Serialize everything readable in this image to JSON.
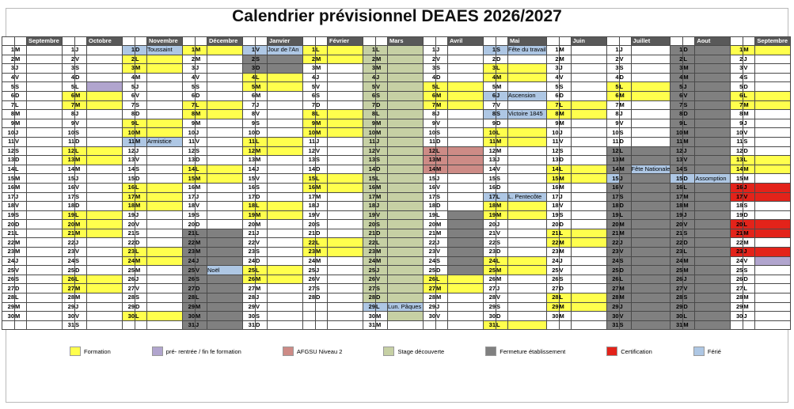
{
  "title": "Calendrier prévisionnel DEAES 2026/2027",
  "colors": {
    "formation": "#FFFF4D",
    "prerentree": "#B1A5CE",
    "afgsu": "#CD8B86",
    "stage": "#C6D0A4",
    "fermeture": "#808080",
    "certification": "#E3231A",
    "ferie": "#AEC7E4",
    "month_header_bg": "#595959",
    "month_header_text": "#FFFFFF",
    "grid": "#4A4A4A"
  },
  "legend": [
    {
      "label": "Formation",
      "key": "formation"
    },
    {
      "label": "pré- rentrée / fin fe formation",
      "key": "prerentree"
    },
    {
      "label": "AFGSU Niveau 2",
      "key": "afgsu"
    },
    {
      "label": "Stage découverte",
      "key": "stage"
    },
    {
      "label": "Fermeture établissement",
      "key": "fermeture"
    },
    {
      "label": "Certification",
      "key": "certification"
    },
    {
      "label": "Férié",
      "key": "ferie"
    }
  ],
  "fill_codes_doc": "y=formation p=pré-rentrée(annot) a=AFGSU g=stage ga=stage(annot) x=fermeture xa=fermeture(annot) r=certification f=férié xf=fermeture+férié-annot fx=férié-num+fermeture",
  "months": [
    {
      "name": "Septembre",
      "days": [
        "1|M",
        "2|M",
        "3|J",
        "4|V",
        "5|S",
        "6|D",
        "7|L",
        "8|M",
        "9|M",
        "10|J",
        "11|V",
        "12|S",
        "13|D",
        "14|L",
        "15|M",
        "16|M",
        "17|J",
        "18|V",
        "19|S",
        "20|D",
        "21|L",
        "22|M",
        "23|M",
        "24|J",
        "25|V",
        "26|S",
        "27|D",
        "28|L",
        "29|M",
        "30|M"
      ]
    },
    {
      "name": "Octobre",
      "days": [
        "1|J",
        "2|V",
        "3|S",
        "4|D",
        "5|L|p",
        "6|M|y",
        "7|M|y",
        "8|J",
        "9|V",
        "10|S",
        "11|D",
        "12|L|y",
        "13|M|y",
        "14|M",
        "15|J",
        "16|V",
        "17|S",
        "18|D",
        "19|L|y",
        "20|M|y",
        "21|M|y",
        "22|J",
        "23|V",
        "24|S",
        "25|D",
        "26|L|y",
        "27|M|y",
        "28|M",
        "29|J",
        "30|V",
        "31|S"
      ]
    },
    {
      "name": "Novembre",
      "days": [
        "1|D|f|Toussaint",
        "2|L|y",
        "3|M|y",
        "4|M",
        "5|J",
        "6|V",
        "7|S",
        "8|D",
        "9|L|y",
        "10|M|y",
        "11|M|f|Armistice",
        "12|J",
        "13|V",
        "14|S",
        "15|D",
        "16|L|y",
        "17|M|y",
        "18|M|y",
        "19|J",
        "20|V",
        "21|S",
        "22|D",
        "23|L|y",
        "24|M|y",
        "25|M",
        "26|J",
        "27|V",
        "28|S",
        "29|D",
        "30|L|y"
      ]
    },
    {
      "name": "Décembre",
      "days": [
        "1|M|y",
        "2|M",
        "3|J",
        "4|V",
        "5|S",
        "6|D",
        "7|L|y",
        "8|M|y",
        "9|M",
        "10|J",
        "11|V",
        "12|S",
        "13|D",
        "14|L|y",
        "15|M|y",
        "16|M",
        "17|J",
        "18|V",
        "19|S",
        "20|D",
        "21|L|x",
        "22|M|x",
        "23|M|x",
        "24|J|x",
        "25|V|xf|Noël",
        "26|S|x",
        "27|D|x",
        "28|L|x",
        "29|M|x",
        "30|M|x",
        "31|J|x"
      ]
    },
    {
      "name": "Janvier",
      "days": [
        "1|V|f|Jour de l'An",
        "2|S|x",
        "3|D|x",
        "4|L|y",
        "5|M|y",
        "6|M",
        "7|J",
        "8|V",
        "9|S",
        "10|D",
        "11|L|y",
        "12|M|y",
        "13|M",
        "14|J",
        "15|V",
        "16|S",
        "17|D",
        "18|L|y",
        "19|M|y",
        "20|M",
        "21|J",
        "22|V",
        "23|S",
        "24|D",
        "25|L|y",
        "26|M|y",
        "27|M",
        "28|J",
        "29|V",
        "30|S",
        "31|D"
      ]
    },
    {
      "name": "Février",
      "days": [
        "1|L|y",
        "2|M|y",
        "3|M",
        "4|J",
        "5|V",
        "6|S",
        "7|D",
        "8|L|y",
        "9|M|y",
        "10|M|y",
        "11|J",
        "12|V",
        "13|S",
        "14|D",
        "15|L|y",
        "16|M|y",
        "17|M",
        "18|J",
        "19|V",
        "20|S",
        "21|D",
        "22|L|y",
        "23|M|y",
        "24|M",
        "25|J",
        "26|V",
        "27|S",
        "28|D"
      ]
    },
    {
      "name": "Mars",
      "days": [
        "1|L|g",
        "2|M|g",
        "3|M|g",
        "4|J|g",
        "5|V|g",
        "6|S|g",
        "7|D|g",
        "8|L|g",
        "9|M|g",
        "10|M|g",
        "11|J|g",
        "12|V|g",
        "13|S|g",
        "14|D|g",
        "15|L|g",
        "16|M|g",
        "17|M|g",
        "18|J|g",
        "19|V|g",
        "20|S|g",
        "21|D|g",
        "22|L|g",
        "23|M|g",
        "24|M|g",
        "25|J|g",
        "26|V|g",
        "27|S|g",
        "28|D|g",
        "29|L|f|Lun. Pâques",
        "30|M|ga",
        "31|M"
      ]
    },
    {
      "name": "Avril",
      "days": [
        "1|J",
        "2|V",
        "3|S",
        "4|D",
        "5|L|y",
        "6|M|y",
        "7|M|y",
        "8|J",
        "9|V",
        "10|S",
        "11|D",
        "12|L|a",
        "13|M|a",
        "14|M|a",
        "15|J",
        "16|V",
        "17|S",
        "18|D",
        "19|L|xa",
        "20|M|xa",
        "21|M|xa",
        "22|J|xa",
        "23|V|xa",
        "24|S|xa",
        "25|D|xa",
        "26|L|y",
        "27|M|y",
        "28|M",
        "29|J",
        "30|V"
      ]
    },
    {
      "name": "Mai",
      "days": [
        "1|S|f|Fête du travail",
        "2|D",
        "3|L|y",
        "4|M|y",
        "5|M",
        "6|J|f|Ascension",
        "7|V",
        "8|S|f|Victoire 1845",
        "9|D",
        "10|L|y",
        "11|M|y",
        "12|M",
        "13|J",
        "14|V",
        "15|S",
        "16|D",
        "17|L|f|L. Pentecôte",
        "18|M|y",
        "19|M|y",
        "20|J",
        "21|V",
        "22|S",
        "23|D",
        "24|L|y",
        "25|M|y",
        "26|M",
        "27|J",
        "28|V",
        "29|S",
        "30|D",
        "31|L|y"
      ]
    },
    {
      "name": "Juin",
      "days": [
        "1|M",
        "2|M",
        "3|J",
        "4|V",
        "5|S",
        "6|D",
        "7|L|y",
        "8|M|y",
        "9|M",
        "10|J",
        "11|V",
        "12|S",
        "13|D",
        "14|L|y",
        "15|M|y",
        "16|M",
        "17|J",
        "18|V",
        "19|S",
        "20|D",
        "21|L|y",
        "22|M|y",
        "23|M",
        "24|J",
        "25|V",
        "26|S",
        "27|D",
        "28|L|y",
        "29|M|y",
        "30|M"
      ]
    },
    {
      "name": "Juillet",
      "days": [
        "1|J",
        "2|V",
        "3|S",
        "4|D",
        "5|L|y",
        "6|M|y",
        "7|M",
        "8|J",
        "9|V",
        "10|S",
        "11|D",
        "12|L|x",
        "13|M|x",
        "14|M|xf|Fête Nationale",
        "15|J|fx",
        "16|V|x",
        "17|S|x",
        "18|D|x",
        "19|L|x",
        "20|M|x",
        "21|M|x",
        "22|J|x",
        "23|V|x",
        "24|S|x",
        "25|D|x",
        "26|L|x",
        "27|M|x",
        "28|M|x",
        "29|J|x",
        "30|V|x",
        "31|S|x"
      ]
    },
    {
      "name": "Aout",
      "days": [
        "1|D|x",
        "2|L|x",
        "3|M|x",
        "4|M|x",
        "5|J|x",
        "6|V|x",
        "7|S|x",
        "8|D|x",
        "9|L|x",
        "10|M|x",
        "11|M|x",
        "12|J|x",
        "13|V|x",
        "14|S|x",
        "15|D|f|Assomption",
        "16|L|x",
        "17|M|x",
        "18|M|x",
        "19|J|x",
        "20|V|x",
        "21|S|x",
        "22|D|x",
        "23|L|x",
        "24|M|x",
        "25|M|x",
        "26|J|x",
        "27|V|x",
        "28|S|x",
        "29|D|x",
        "30|L|x",
        "31|M|x"
      ]
    },
    {
      "name": "Septembre",
      "days": [
        "1|M|y",
        "2|J",
        "3|V",
        "4|S",
        "5|D",
        "6|L|y",
        "7|M|y",
        "8|M",
        "9|J",
        "10|V",
        "11|S",
        "12|D",
        "13|L|y",
        "14|M|y",
        "15|M",
        "16|J|r",
        "17|V|r",
        "18|S",
        "19|D",
        "20|L|r",
        "21|M|r",
        "22|M",
        "23|J|r",
        "24|V|p",
        "25|S",
        "26|D",
        "27|L",
        "28|M",
        "29|M",
        "30|J"
      ]
    }
  ]
}
